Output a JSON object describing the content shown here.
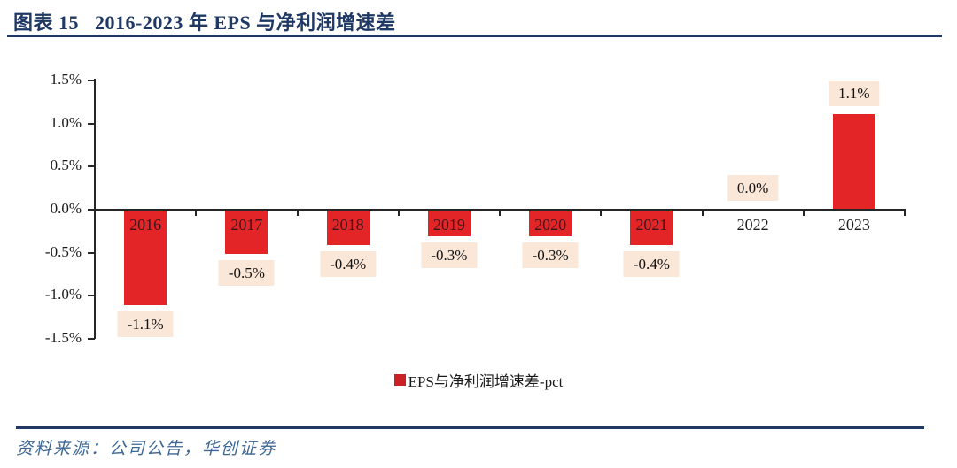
{
  "header": {
    "title": "图表 15   2016-2023 年 EPS 与净利润增速差"
  },
  "chart_data": {
    "type": "bar",
    "title": "2016-2023 年 EPS 与净利润增速差",
    "categories": [
      "2016",
      "2017",
      "2018",
      "2019",
      "2020",
      "2021",
      "2022",
      "2023"
    ],
    "values": [
      -1.1,
      -0.5,
      -0.4,
      -0.3,
      -0.3,
      -0.4,
      0.0,
      1.1
    ],
    "value_labels": [
      "-1.1%",
      "-0.5%",
      "-0.4%",
      "-0.3%",
      "-0.3%",
      "-0.4%",
      "0.0%",
      "1.1%"
    ],
    "ylim": [
      -1.5,
      1.5
    ],
    "yticks": [
      1.5,
      1.0,
      0.5,
      0.0,
      -0.5,
      -1.0,
      -1.5
    ],
    "ytick_labels": [
      "1.5%",
      "1.0%",
      "0.5%",
      "0.0%",
      "-0.5%",
      "-1.0%",
      "-1.5%"
    ],
    "xlabel": "",
    "ylabel": "",
    "grid": false,
    "legend_position": "bottom",
    "series": [
      {
        "name": "EPS与净利润增速差-pct",
        "values": [
          -1.1,
          -0.5,
          -0.4,
          -0.3,
          -0.3,
          -0.4,
          0.0,
          1.1
        ]
      }
    ]
  },
  "legend": {
    "label": "EPS与净利润增速差-pct"
  },
  "footer": {
    "source": "资料来源：公司公告，华创证券"
  },
  "colors": {
    "navy": "#1f3864",
    "bar_red": "#e42527",
    "legend_red": "#cc2027",
    "label_bg": "#fbe7d8",
    "axis": "#262626",
    "footer_blue": "#3c6694",
    "year_on_bar": "#3a151a",
    "text_black": "#1a1a1a"
  }
}
